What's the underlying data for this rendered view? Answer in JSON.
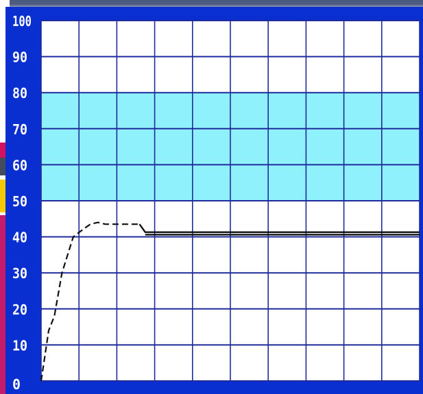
{
  "colors": {
    "frame": "#0a2fd1",
    "band": "#8ef1fb",
    "grid": "#1f2b9c",
    "line": "#111111",
    "tick_text": "#ffffff",
    "plot_bg": "#ffffff"
  },
  "chart_data": {
    "type": "line",
    "title": "",
    "xlabel": "",
    "ylabel": "",
    "ylim": [
      0,
      100
    ],
    "yticks": [
      "0",
      "10",
      "20",
      "30",
      "40",
      "50",
      "60",
      "70",
      "80",
      "90",
      "100"
    ],
    "xlim": [
      0,
      10
    ],
    "x_gridlines": 10,
    "grid": true,
    "shaded_band": {
      "from": 50,
      "to": 80
    },
    "series": [
      {
        "style": "dashed",
        "points": [
          [
            0.0,
            0
          ],
          [
            0.2,
            14
          ],
          [
            0.35,
            18
          ],
          [
            0.55,
            30
          ],
          [
            0.85,
            40
          ],
          [
            1.1,
            42
          ],
          [
            1.3,
            43.5
          ],
          [
            1.5,
            44
          ],
          [
            1.7,
            43.5
          ],
          [
            2.0,
            43.5
          ],
          [
            2.3,
            43.5
          ],
          [
            2.6,
            43.5
          ]
        ]
      },
      {
        "style": "solid",
        "points": [
          [
            2.6,
            43.5
          ],
          [
            2.75,
            41.3
          ],
          [
            10.0,
            41.3
          ]
        ]
      },
      {
        "style": "solid",
        "points": [
          [
            2.75,
            40.6
          ],
          [
            10.0,
            40.6
          ]
        ]
      }
    ]
  }
}
